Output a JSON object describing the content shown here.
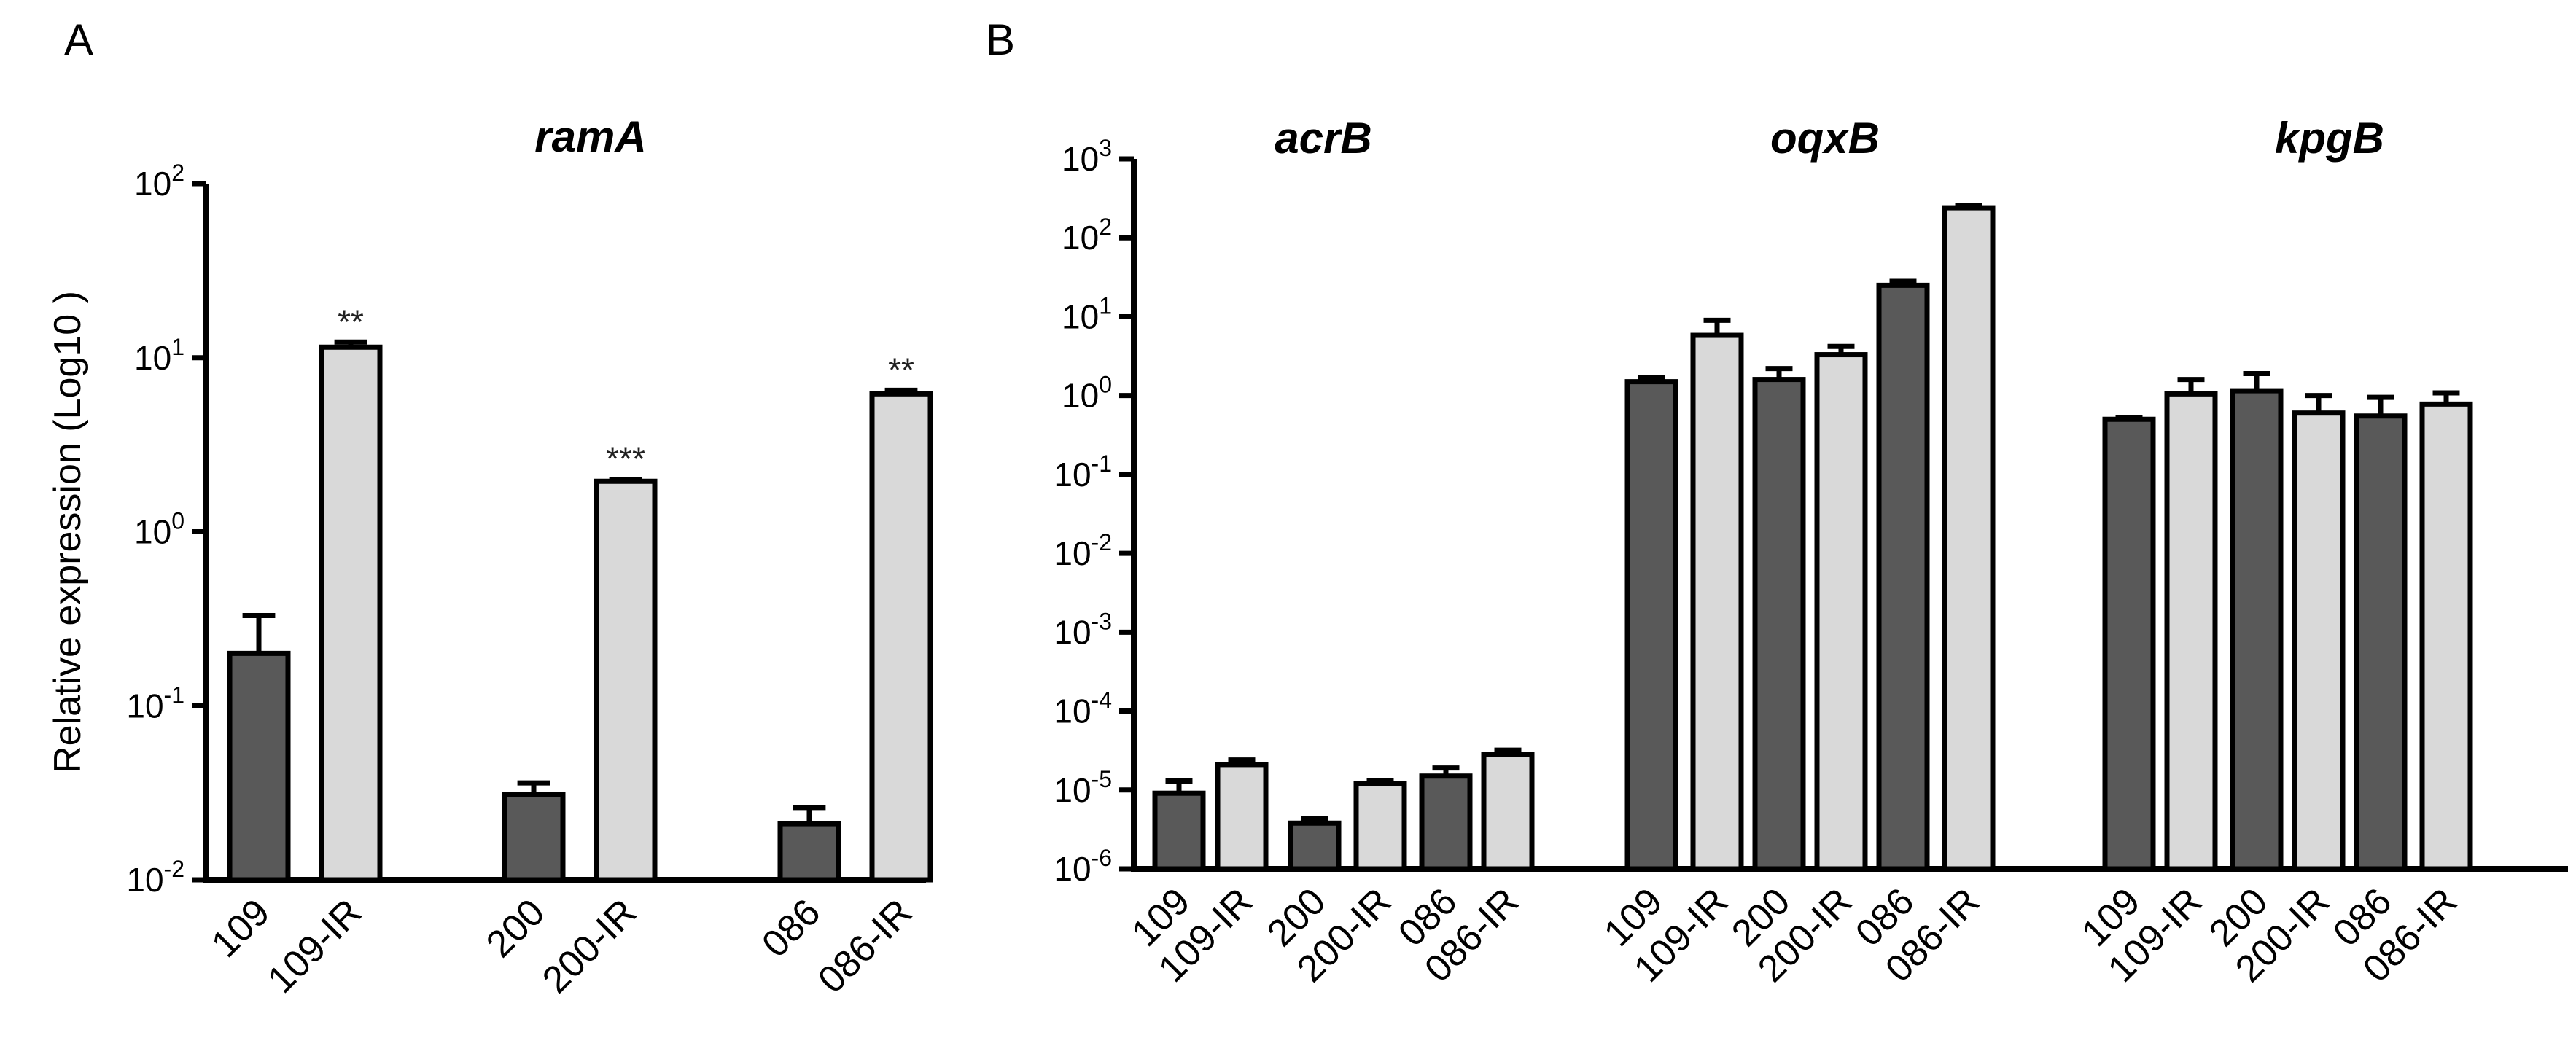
{
  "colors": {
    "dark": "#595959",
    "light": "#d9d9d9",
    "stroke": "#000000"
  },
  "chart_data": [
    {
      "panel": "A",
      "type": "bar",
      "title": "ramA",
      "ylabel": "Relative expression (Log10 )",
      "yscale": "log",
      "ylim": [
        0.01,
        100
      ],
      "yticks": [
        {
          "base": "10",
          "exp": "-2"
        },
        {
          "base": "10",
          "exp": "-1"
        },
        {
          "base": "10",
          "exp": "0"
        },
        {
          "base": "10",
          "exp": "1"
        },
        {
          "base": "10",
          "exp": "2"
        }
      ],
      "categories": [
        "109",
        "109-IR",
        "200",
        "200-IR",
        "086",
        "086-IR"
      ],
      "values": [
        0.2,
        11.5,
        0.031,
        1.95,
        0.021,
        6.2
      ],
      "errors": [
        0.33,
        12.3,
        0.036,
        2.0,
        0.026,
        6.5
      ],
      "fill": [
        "dark",
        "light",
        "dark",
        "light",
        "dark",
        "light"
      ],
      "significance": [
        "",
        "**",
        "",
        "***",
        "",
        "**"
      ]
    },
    {
      "panel": "B",
      "type": "bar",
      "title": "acrB",
      "yscale": "log",
      "ylim": [
        1e-06,
        1000
      ],
      "yticks": [
        {
          "base": "10",
          "exp": "-6"
        },
        {
          "base": "10",
          "exp": "-5"
        },
        {
          "base": "10",
          "exp": "-4"
        },
        {
          "base": "10",
          "exp": "-3"
        },
        {
          "base": "10",
          "exp": "-2"
        },
        {
          "base": "10",
          "exp": "-1"
        },
        {
          "base": "10",
          "exp": "0"
        },
        {
          "base": "10",
          "exp": "1"
        },
        {
          "base": "10",
          "exp": "2"
        },
        {
          "base": "10",
          "exp": "3"
        }
      ],
      "categories": [
        "109",
        "109-IR",
        "200",
        "200-IR",
        "086",
        "086-IR"
      ],
      "values": [
        9.1e-06,
        2.1e-05,
        3.8e-06,
        1.2e-05,
        1.5e-05,
        2.8e-05
      ],
      "errors": [
        1.3e-05,
        2.4e-05,
        4.3e-06,
        1.3e-05,
        1.9e-05,
        3.2e-05
      ],
      "fill": [
        "dark",
        "light",
        "dark",
        "light",
        "dark",
        "light"
      ]
    },
    {
      "panel": "B",
      "type": "bar",
      "title": "oqxB",
      "categories": [
        "109",
        "109-IR",
        "200",
        "200-IR",
        "086",
        "086-IR"
      ],
      "values": [
        1.5,
        5.8,
        1.6,
        3.3,
        25,
        240
      ],
      "errors": [
        1.7,
        9.0,
        2.2,
        4.2,
        28,
        255
      ],
      "fill": [
        "dark",
        "light",
        "dark",
        "light",
        "dark",
        "light"
      ]
    },
    {
      "panel": "B",
      "type": "bar",
      "title": "kpgB",
      "categories": [
        "109",
        "109-IR",
        "200",
        "200-IR",
        "086",
        "086-IR"
      ],
      "values": [
        0.5,
        1.05,
        1.15,
        0.6,
        0.55,
        0.78
      ],
      "errors": [
        0.52,
        1.6,
        1.9,
        1.0,
        0.95,
        1.08
      ],
      "fill": [
        "dark",
        "light",
        "dark",
        "light",
        "dark",
        "light"
      ]
    }
  ],
  "panel_labels": {
    "a": "A",
    "b": "B"
  }
}
